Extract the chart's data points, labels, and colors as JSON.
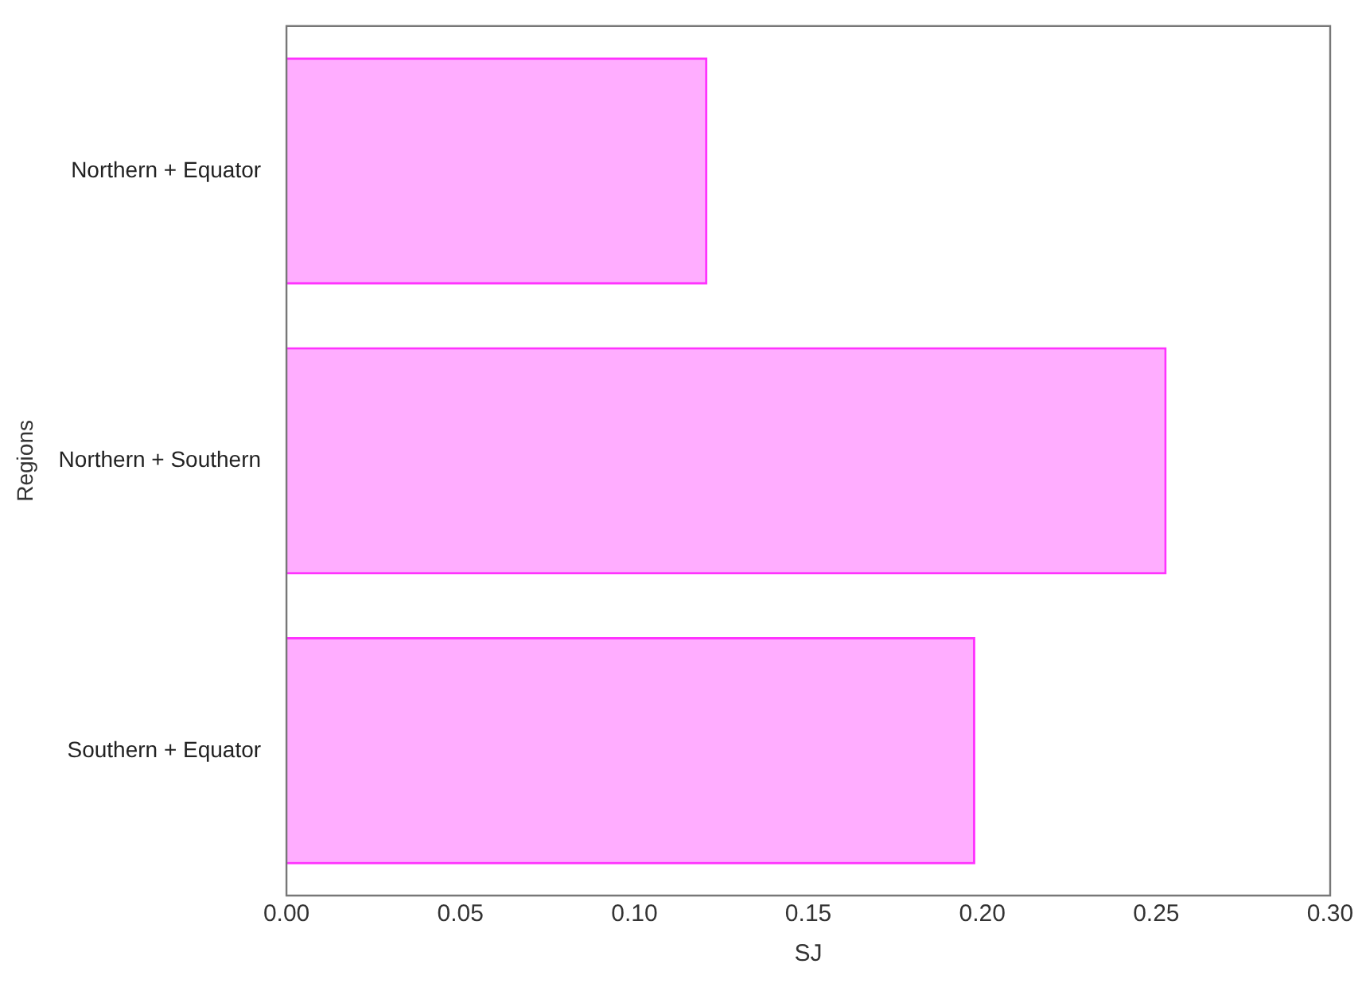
{
  "chart_data": {
    "type": "bar",
    "orientation": "horizontal",
    "xlabel": "SJ",
    "ylabel": "Regions",
    "categories": [
      "Northern + Equator",
      "Northern + Southern",
      "Southern + Equator"
    ],
    "values": [
      0.121,
      0.253,
      0.198
    ],
    "color": "#ff33ff",
    "xlim": [
      0,
      0.3
    ],
    "xticks": [
      {
        "value": 0,
        "label": "0.00"
      },
      {
        "value": 0.05,
        "label": "0.05"
      },
      {
        "value": 0.1,
        "label": "0.10"
      },
      {
        "value": 0.15,
        "label": "0.15"
      },
      {
        "value": 0.2,
        "label": "0.20"
      },
      {
        "value": 0.25,
        "label": "0.25"
      },
      {
        "value": 0.3,
        "label": "0.30"
      }
    ],
    "grid": false,
    "legend": false
  }
}
